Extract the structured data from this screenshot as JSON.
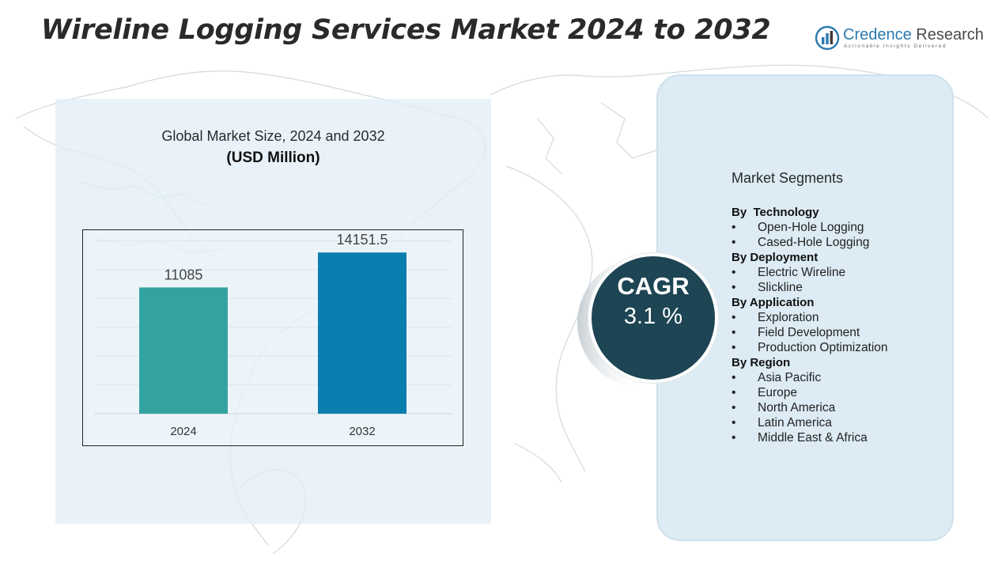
{
  "title": "Wireline Logging Services Market 2024 to 2032",
  "logo": {
    "name_primary": "Credence",
    "name_secondary": "Research",
    "tagline": "Actionable Insights Delivered",
    "icon": "bar-chart-globe-icon",
    "color": "#2a7ab0"
  },
  "chart_heading": "Global Market Size, 2024 and 2032",
  "chart_unit": "(USD Million)",
  "chart_data": {
    "type": "bar",
    "categories": [
      "2024",
      "2032"
    ],
    "values": [
      11085,
      14151.5
    ],
    "value_labels": [
      "11085",
      "14151.5"
    ],
    "colors": [
      "#33a3a0",
      "#0b7eb0"
    ],
    "ylim": [
      0,
      15000
    ],
    "grid": true,
    "legend": "none"
  },
  "segments": {
    "title": "Market Segments",
    "groups": [
      {
        "title": "By  Technology",
        "items": [
          "Open-Hole Logging",
          "Cased-Hole Logging"
        ]
      },
      {
        "title": "By Deployment",
        "items": [
          "Electric Wireline",
          "Slickline"
        ]
      },
      {
        "title": "By Application",
        "items": [
          "Exploration",
          "Field Development",
          "Production Optimization"
        ]
      },
      {
        "title": "By Region",
        "items": [
          "Asia Pacific",
          "Europe",
          "North America",
          "Latin America",
          "Middle East & Africa"
        ]
      }
    ],
    "bullet": "•"
  },
  "cagr": {
    "label": "CAGR",
    "value": "3.1 %",
    "color": "#1d4553"
  }
}
